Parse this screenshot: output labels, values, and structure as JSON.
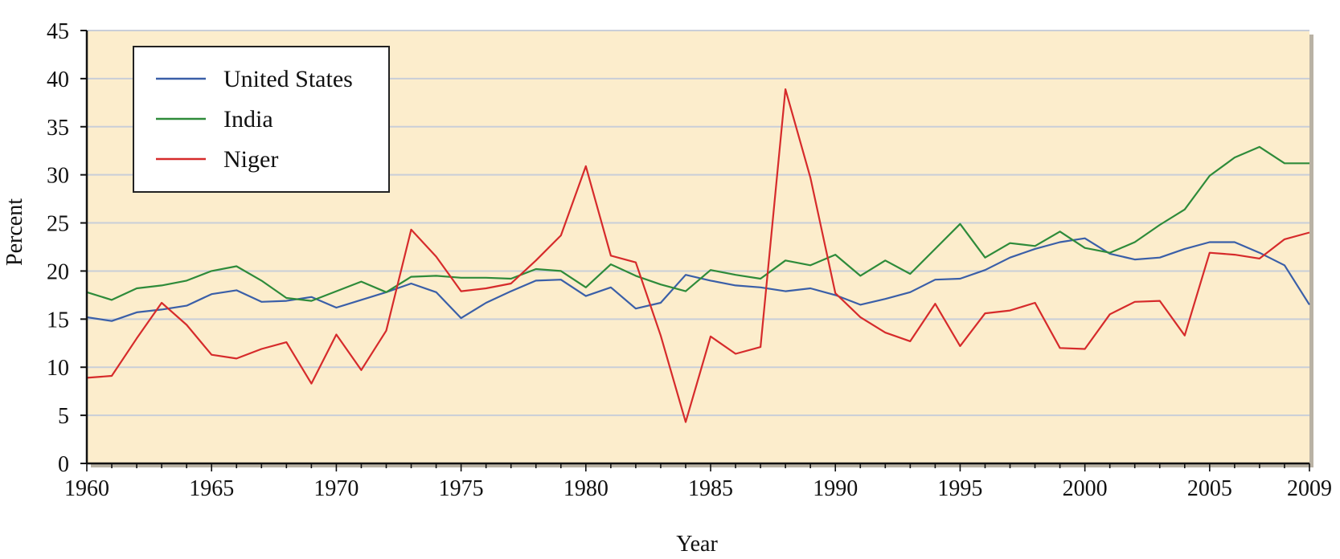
{
  "chart_data": {
    "type": "line",
    "title": "",
    "xlabel": "Year",
    "ylabel": "Percent",
    "xlim": [
      1960,
      2009
    ],
    "ylim": [
      0,
      45
    ],
    "x_ticks": [
      1960,
      1965,
      1970,
      1975,
      1980,
      1985,
      1990,
      1995,
      2000,
      2005,
      2009
    ],
    "y_ticks": [
      0,
      5,
      10,
      15,
      20,
      25,
      30,
      35,
      40,
      45
    ],
    "grid": "horizontal",
    "legend_position": "top-left",
    "background_color": "#fcedcc",
    "gridline_color": "#c9ced8",
    "x": [
      1960,
      1961,
      1962,
      1963,
      1964,
      1965,
      1966,
      1967,
      1968,
      1969,
      1970,
      1971,
      1972,
      1973,
      1974,
      1975,
      1976,
      1977,
      1978,
      1979,
      1980,
      1981,
      1982,
      1983,
      1984,
      1985,
      1986,
      1987,
      1988,
      1989,
      1990,
      1991,
      1992,
      1993,
      1994,
      1995,
      1996,
      1997,
      1998,
      1999,
      2000,
      2001,
      2002,
      2003,
      2004,
      2005,
      2006,
      2007,
      2008,
      2009
    ],
    "series": [
      {
        "name": "United States",
        "color": "#3a5fa8",
        "values": [
          15.2,
          14.8,
          15.7,
          16.0,
          16.4,
          17.6,
          18.0,
          16.8,
          16.9,
          17.3,
          16.2,
          17.0,
          17.8,
          18.7,
          17.8,
          15.1,
          16.7,
          17.9,
          19.0,
          19.1,
          17.4,
          18.3,
          16.1,
          16.7,
          19.6,
          19.0,
          18.5,
          18.3,
          17.9,
          18.2,
          17.5,
          16.5,
          17.1,
          17.8,
          19.1,
          19.2,
          20.1,
          21.4,
          22.3,
          23.0,
          23.4,
          21.8,
          21.2,
          21.4,
          22.3,
          23.0,
          23.0,
          21.9,
          20.6,
          16.5
        ]
      },
      {
        "name": "India",
        "color": "#2e8b3a",
        "values": [
          17.8,
          17.0,
          18.2,
          18.5,
          19.0,
          20.0,
          20.5,
          19.0,
          17.2,
          16.9,
          17.9,
          18.9,
          17.8,
          19.4,
          19.5,
          19.3,
          19.3,
          19.2,
          20.2,
          20.0,
          18.3,
          20.7,
          19.5,
          18.6,
          17.9,
          20.1,
          19.6,
          19.2,
          21.1,
          20.6,
          21.7,
          19.5,
          21.1,
          19.7,
          22.3,
          24.9,
          21.4,
          22.9,
          22.6,
          24.1,
          22.4,
          21.9,
          23.0,
          24.8,
          26.4,
          29.9,
          31.8,
          32.9,
          31.2,
          31.2
        ]
      },
      {
        "name": "Niger",
        "color": "#d62b2b",
        "values": [
          8.9,
          9.1,
          13.0,
          16.7,
          14.4,
          11.3,
          10.9,
          11.9,
          12.6,
          8.3,
          13.4,
          9.7,
          13.8,
          24.3,
          21.5,
          17.9,
          18.2,
          18.7,
          21.1,
          23.7,
          30.9,
          21.6,
          20.9,
          13.3,
          4.3,
          13.2,
          11.4,
          12.1,
          38.9,
          29.7,
          17.7,
          15.2,
          13.6,
          12.7,
          16.6,
          12.2,
          15.6,
          15.9,
          16.7,
          12.0,
          11.9,
          15.5,
          16.8,
          16.9,
          13.3,
          21.9,
          21.7,
          21.3,
          23.3,
          24.0
        ]
      }
    ]
  }
}
